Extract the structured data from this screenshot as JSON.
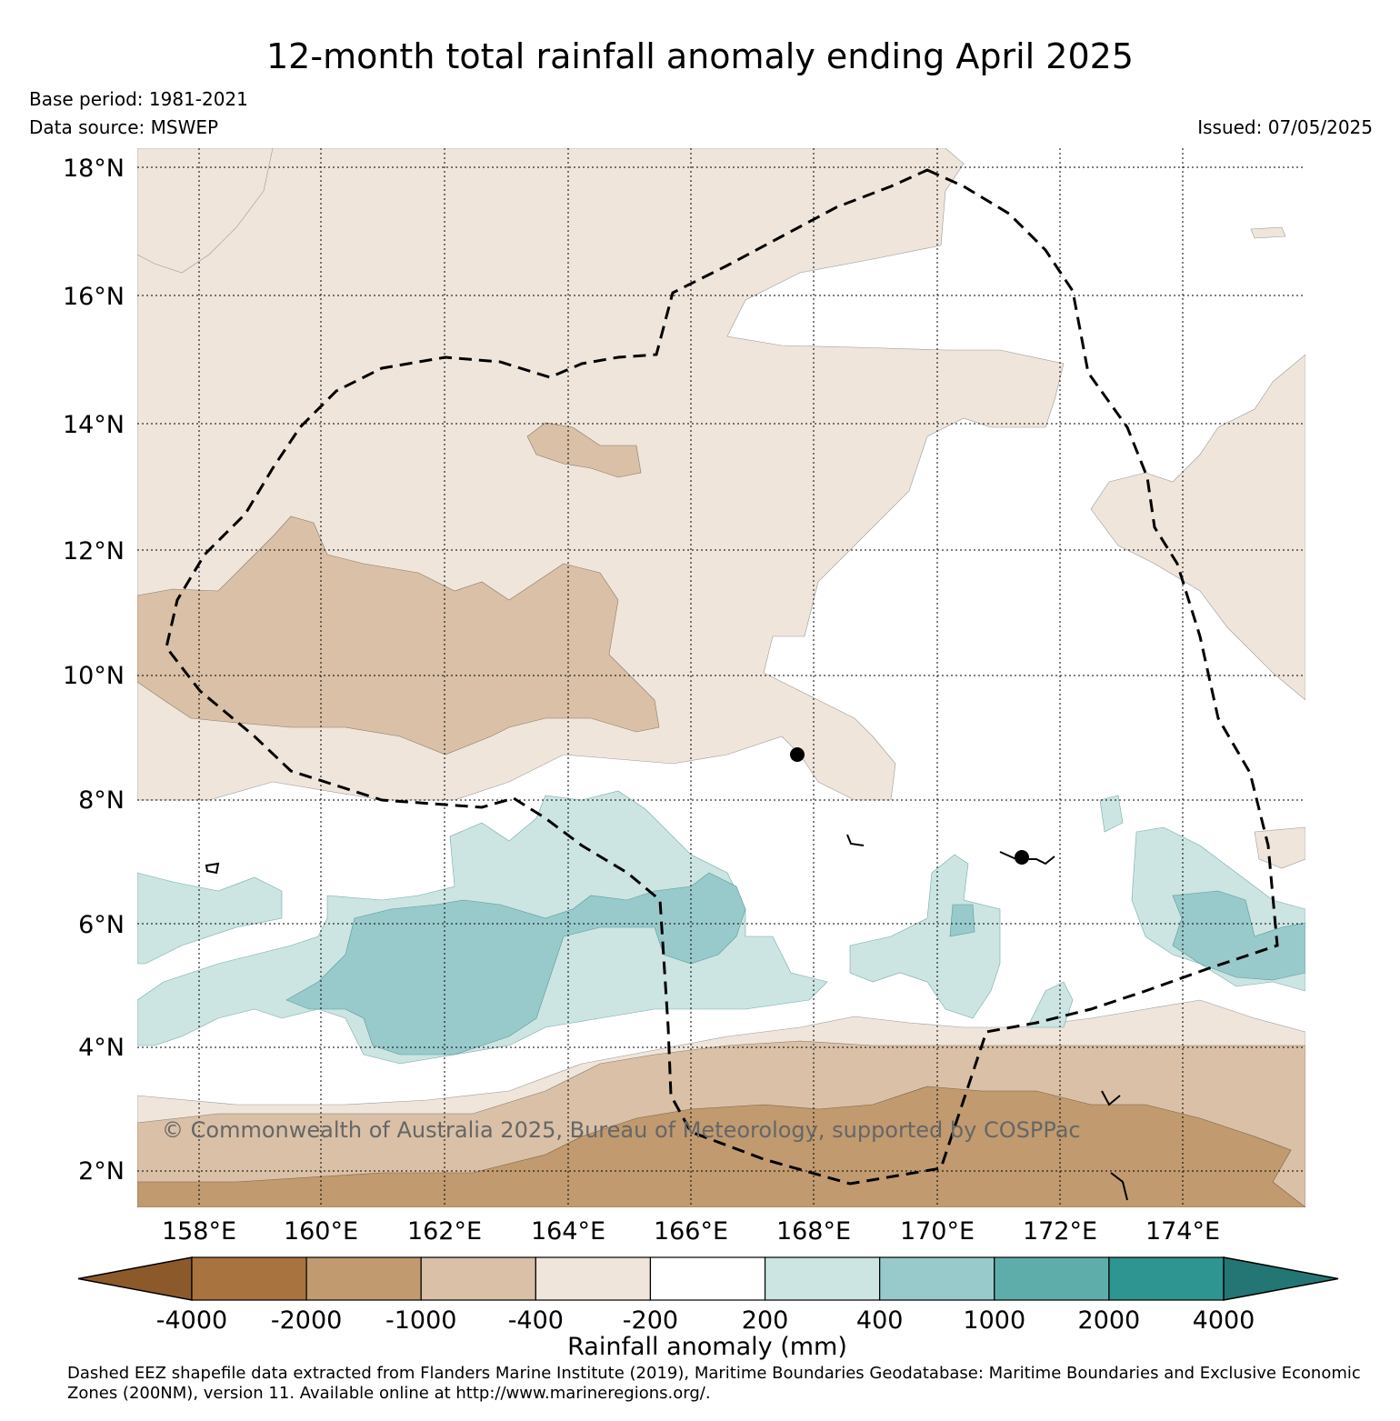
{
  "title": "12-month total rainfall anomaly ending April 2025",
  "base_period": "Base period: 1981-2021",
  "data_source": "Data source: MSWEP",
  "issued": "Issued: 07/05/2025",
  "copyright": "© Commonwealth of Australia 2025, Bureau of Meteorology, supported by COSPPac",
  "lat_labels": [
    "18°N",
    "16°N",
    "14°N",
    "12°N",
    "10°N",
    "8°N",
    "6°N",
    "4°N",
    "2°N"
  ],
  "lon_labels": [
    "158°E",
    "160°E",
    "162°E",
    "164°E",
    "166°E",
    "168°E",
    "170°E",
    "172°E",
    "174°E"
  ],
  "colorbar": {
    "label": "Rainfall anomaly (mm)",
    "ticks": [
      "-4000",
      "-2000",
      "-1000",
      "-400",
      "-200",
      "200",
      "400",
      "1000",
      "2000",
      "4000"
    ],
    "colors": [
      "#8c5a2a",
      "#a8733f",
      "#c19a6f",
      "#d9c0a6",
      "#efe5db",
      "#ffffff",
      "#cce4e2",
      "#99cacb",
      "#5fadab",
      "#2e9591",
      "#237673"
    ]
  },
  "footer": "Dashed EEZ shapefile data extracted from Flanders Marine Institute (2019), Maritime Boundaries Geodatabase: Maritime Boundaries and Exclusive Economic Zones (200NM), version 11. Available online at http://www.marineregions.org/."
}
